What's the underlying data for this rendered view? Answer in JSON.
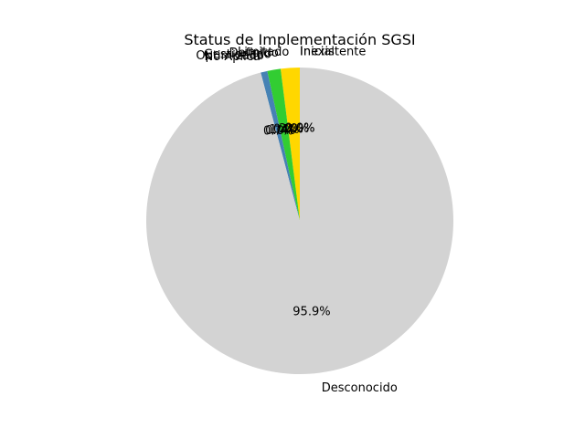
{
  "chart_data": {
    "type": "pie",
    "title": "Status de Implementación SGSI",
    "start_angle_deg": 90,
    "counterclockwise": true,
    "slices": [
      {
        "label": "Inexistente",
        "value": 0.0,
        "pct_label": "0.0%",
        "color": "#c0392b"
      },
      {
        "label": "Inicial",
        "value": 0.0,
        "pct_label": "0.0%",
        "color": "#e67e22"
      },
      {
        "label": "Limitado",
        "value": 2.0,
        "pct_label": "2.0%",
        "color": "#ffd700"
      },
      {
        "label": "Definido",
        "value": 0.0,
        "pct_label": "0.0%",
        "color": "#9acd32"
      },
      {
        "label": "Gestionado",
        "value": 1.4,
        "pct_label": "1.4%",
        "color": "#32cd32"
      },
      {
        "label": "Optimizado",
        "value": 0.0,
        "pct_label": "0.0%",
        "color": "#228b22"
      },
      {
        "label": "No Aplica",
        "value": 0.7,
        "pct_label": "0.7%",
        "color": "#4682b4"
      },
      {
        "label": "Desconocido",
        "value": 95.9,
        "pct_label": "95.9%",
        "color": "#d3d3d3"
      }
    ]
  }
}
